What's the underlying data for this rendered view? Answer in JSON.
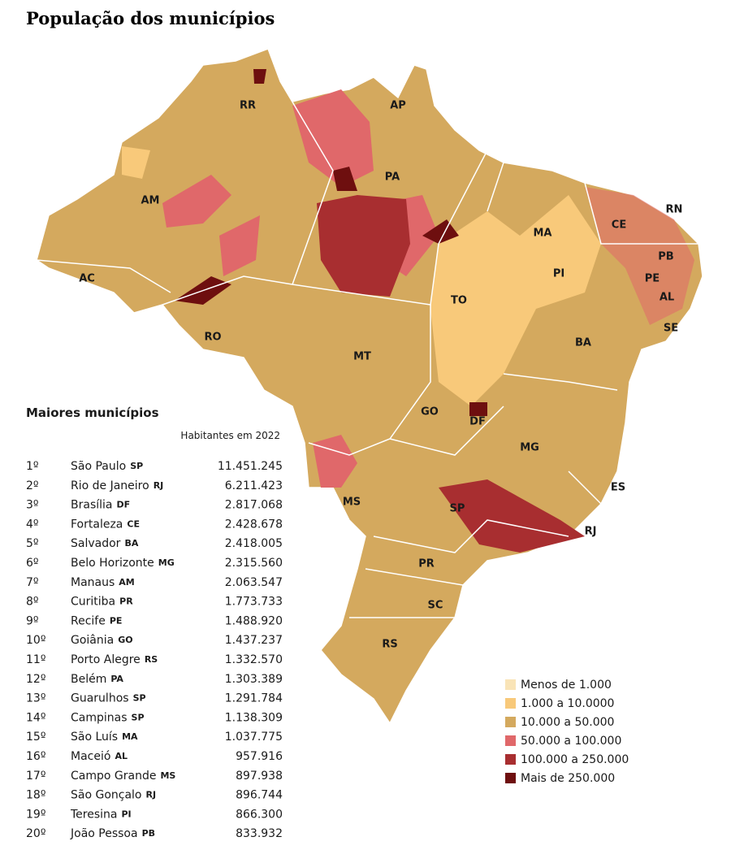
{
  "title": "População dos municípios",
  "states": [
    "RR",
    "AP",
    "AM",
    "PA",
    "AC",
    "RO",
    "MT",
    "TO",
    "MA",
    "PI",
    "CE",
    "RN",
    "PB",
    "PE",
    "AL",
    "SE",
    "BA",
    "GO",
    "DF",
    "MG",
    "ES",
    "MS",
    "SP",
    "RJ",
    "PR",
    "SC",
    "RS"
  ],
  "legend": [
    {
      "label": "Menos de 1.000",
      "color": "#f9e4b7"
    },
    {
      "label": "1.000 a 10.0000",
      "color": "#f8c97a"
    },
    {
      "label": "10.000 a 50.000",
      "color": "#d4a95e"
    },
    {
      "label": "50.000 a 100.000",
      "color": "#e0686a"
    },
    {
      "label": "100.000 a 250.000",
      "color": "#a82e30"
    },
    {
      "label": "Mais de 250.000",
      "color": "#6e0f0f"
    }
  ],
  "table": {
    "title": "Maiores municípios",
    "column": "Habitantes em 2022",
    "rows": [
      [
        "1º",
        "São Paulo",
        "SP",
        "11.451.245"
      ],
      [
        "2º",
        "Rio de Janeiro",
        "RJ",
        "6.211.423"
      ],
      [
        "3º",
        "Brasília",
        "DF",
        "2.817.068"
      ],
      [
        "4º",
        "Fortaleza",
        "CE",
        "2.428.678"
      ],
      [
        "5º",
        "Salvador",
        "BA",
        "2.418.005"
      ],
      [
        "6º",
        "Belo Horizonte",
        "MG",
        "2.315.560"
      ],
      [
        "7º",
        "Manaus",
        "AM",
        "2.063.547"
      ],
      [
        "8º",
        "Curitiba",
        "PR",
        "1.773.733"
      ],
      [
        "9º",
        "Recife",
        "PE",
        "1.488.920"
      ],
      [
        "10º",
        "Goiânia",
        "GO",
        "1.437.237"
      ],
      [
        "11º",
        "Porto Alegre",
        "RS",
        "1.332.570"
      ],
      [
        "12º",
        "Belém",
        "PA",
        "1.303.389"
      ],
      [
        "13º",
        "Guarulhos",
        "SP",
        "1.291.784"
      ],
      [
        "14º",
        "Campinas",
        "SP",
        "1.138.309"
      ],
      [
        "15º",
        "São Luís",
        "MA",
        "1.037.775"
      ],
      [
        "16º",
        "Maceió",
        "AL",
        "957.916"
      ],
      [
        "17º",
        "Campo Grande",
        "MS",
        "897.938"
      ],
      [
        "18º",
        "São Gonçalo",
        "RJ",
        "896.744"
      ],
      [
        "19º",
        "Teresina",
        "PI",
        "866.300"
      ],
      [
        "20º",
        "João Pessoa",
        "PB",
        "833.932"
      ]
    ]
  }
}
